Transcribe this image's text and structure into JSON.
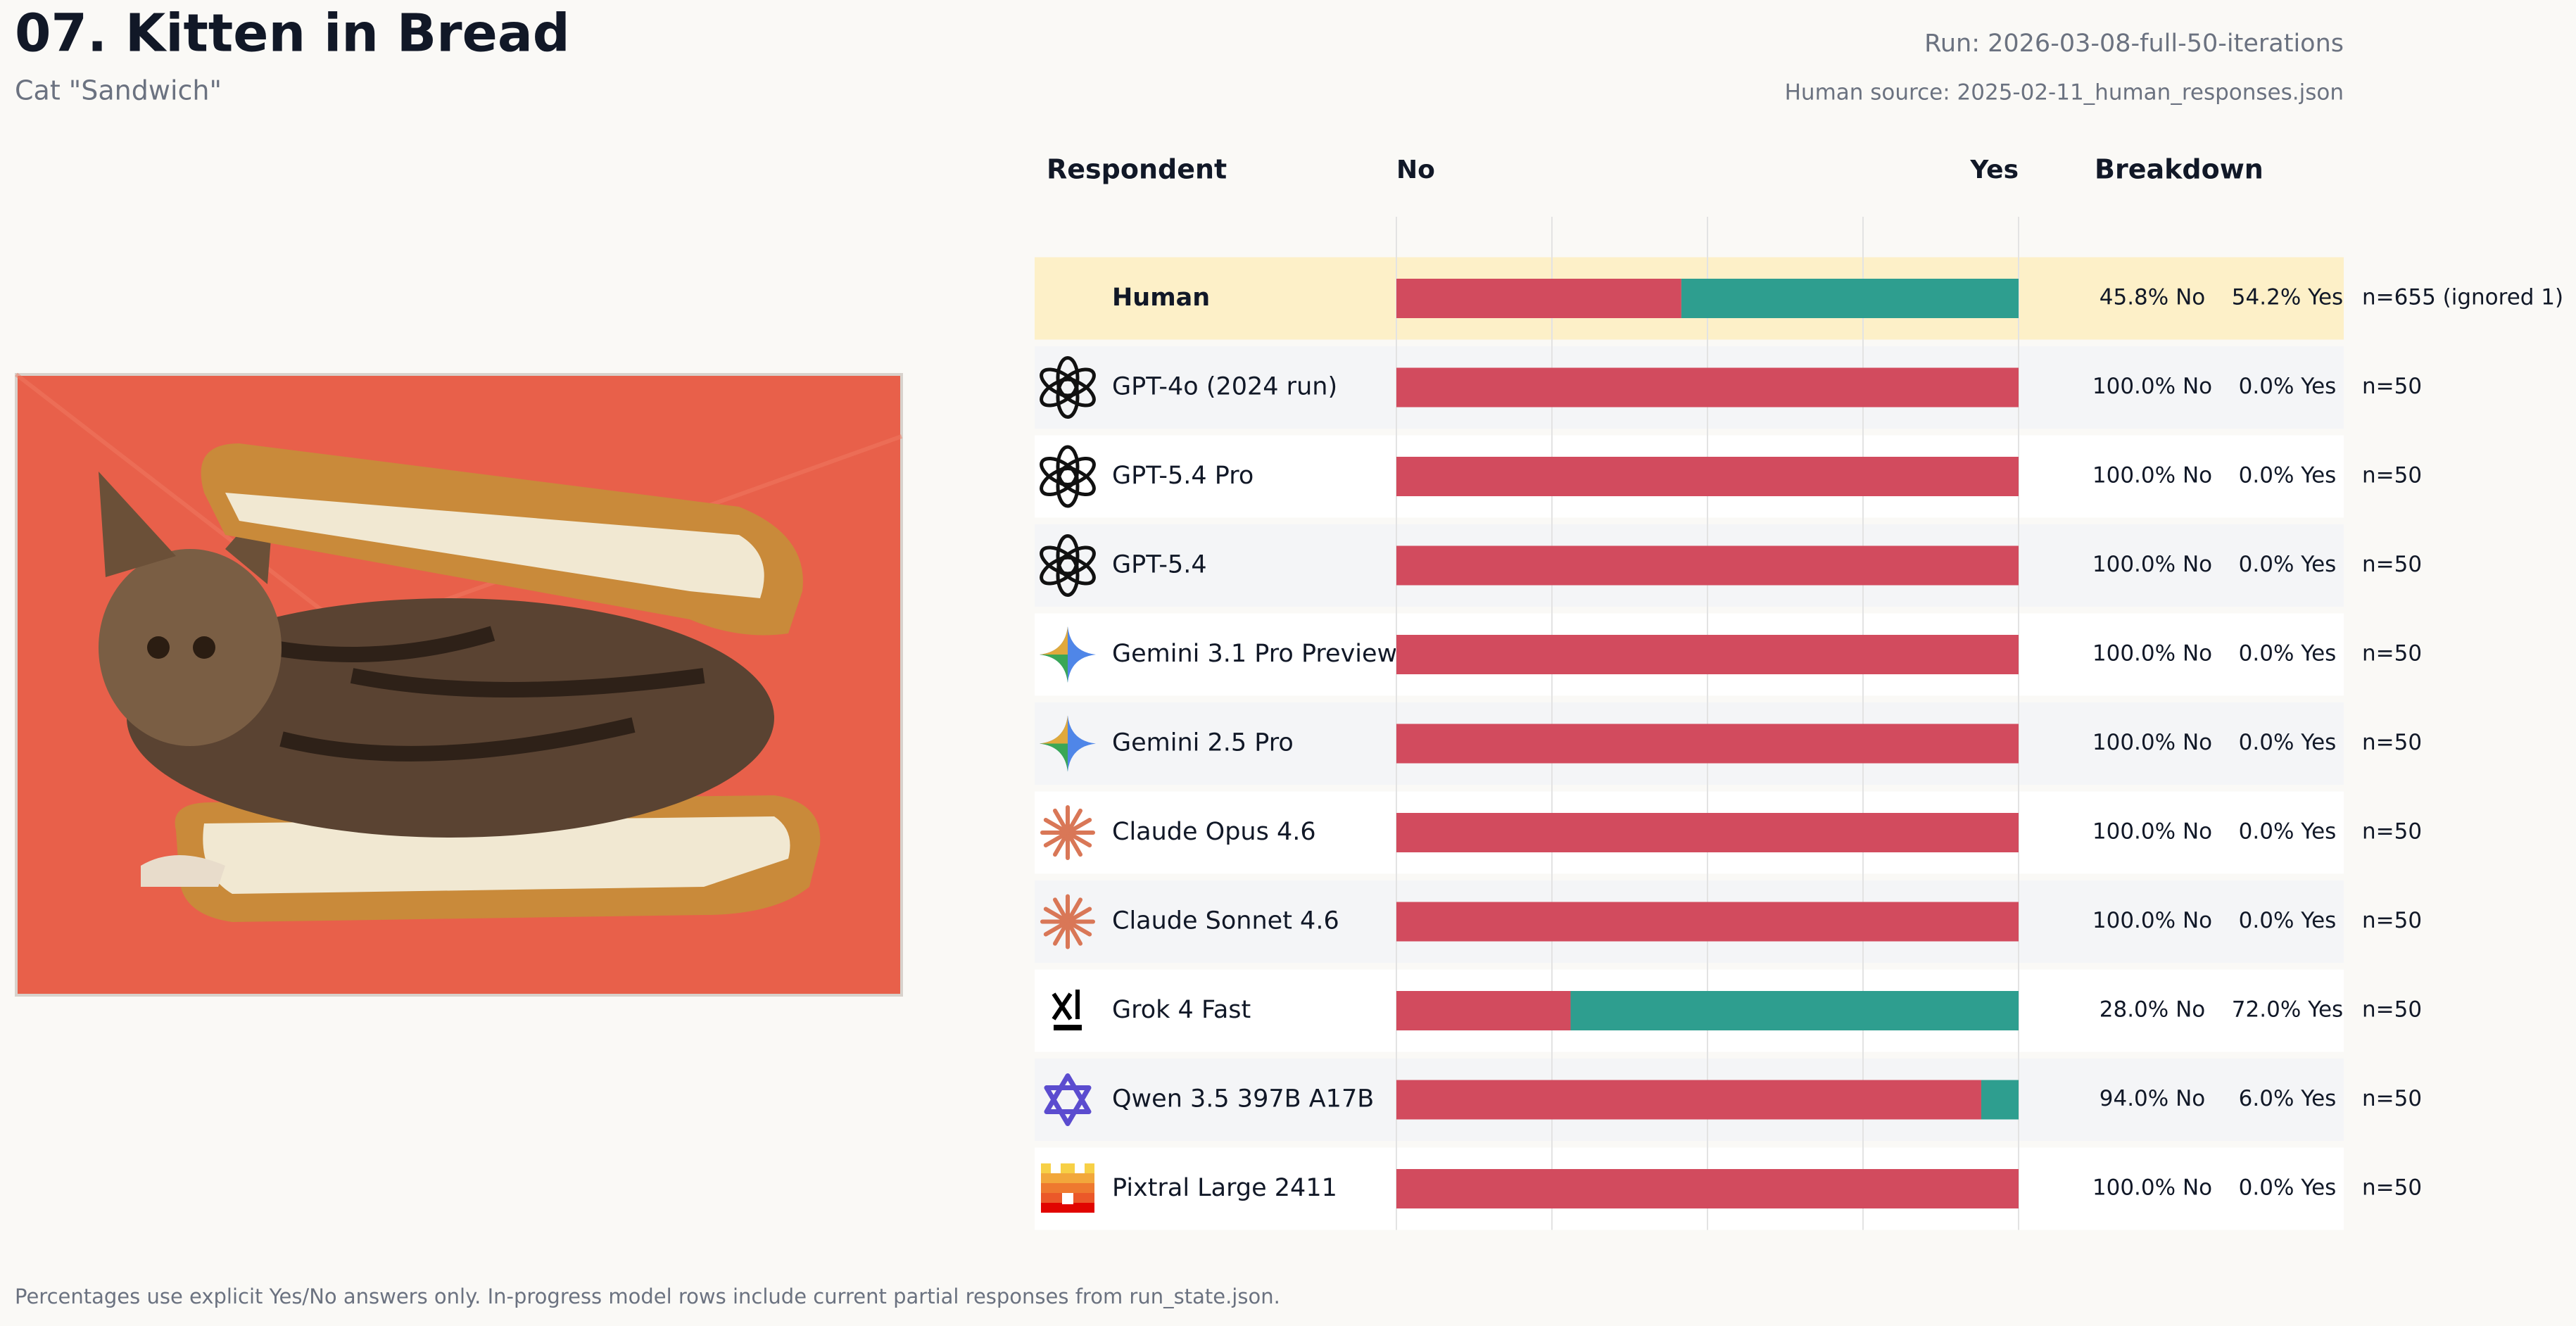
{
  "chart_data": {
    "type": "bar",
    "orientation": "horizontal",
    "stacked": true,
    "title": "07. Kitten in Bread",
    "subtitle": "Cat \"Sandwich\"",
    "run_label": "Run: 2026-03-08-full-50-iterations",
    "source_label": "Human source: 2025-02-11_human_responses.json",
    "respondent_header": "Respondent",
    "breakdown_header": "Breakdown",
    "categories": [
      "Human",
      "GPT-4o (2024 run)",
      "GPT-5.4 Pro",
      "GPT-5.4",
      "Gemini 3.1 Pro Preview",
      "Gemini 2.5 Pro",
      "Claude Opus 4.6",
      "Claude Sonnet 4.6",
      "Grok 4 Fast",
      "Qwen 3.5 397B A17B",
      "Pixtral Large 2411"
    ],
    "series": [
      {
        "name": "No",
        "color": "#d24b5e",
        "values": [
          45.8,
          100.0,
          100.0,
          100.0,
          100.0,
          100.0,
          100.0,
          100.0,
          28.0,
          94.0,
          100.0
        ],
        "value_labels": [
          "45.8% No",
          "100.0% No",
          "100.0% No",
          "100.0% No",
          "100.0% No",
          "100.0% No",
          "100.0% No",
          "100.0% No",
          "28.0% No",
          "94.0% No",
          "100.0% No"
        ]
      },
      {
        "name": "Yes",
        "color": "#2e9e8f",
        "values": [
          54.2,
          0.0,
          0.0,
          0.0,
          0.0,
          0.0,
          0.0,
          0.0,
          72.0,
          6.0,
          0.0
        ],
        "value_labels": [
          "54.2% Yes",
          "0.0% Yes",
          "0.0% Yes",
          "0.0% Yes",
          "0.0% Yes",
          "0.0% Yes",
          "0.0% Yes",
          "0.0% Yes",
          "72.0% Yes",
          "6.0% Yes",
          "0.0% Yes"
        ]
      }
    ],
    "sample_labels": [
      "n=655 (ignored 1)",
      "n=50",
      "n=50",
      "n=50",
      "n=50",
      "n=50",
      "n=50",
      "n=50",
      "n=50",
      "n=50",
      "n=50"
    ],
    "xlim": [
      0,
      100
    ],
    "xticks": [
      0,
      25,
      50,
      75,
      100
    ],
    "grid": true,
    "footnote": "Percentages use explicit Yes/No answers only. In-progress model rows include current partial responses from run_state.json."
  }
}
